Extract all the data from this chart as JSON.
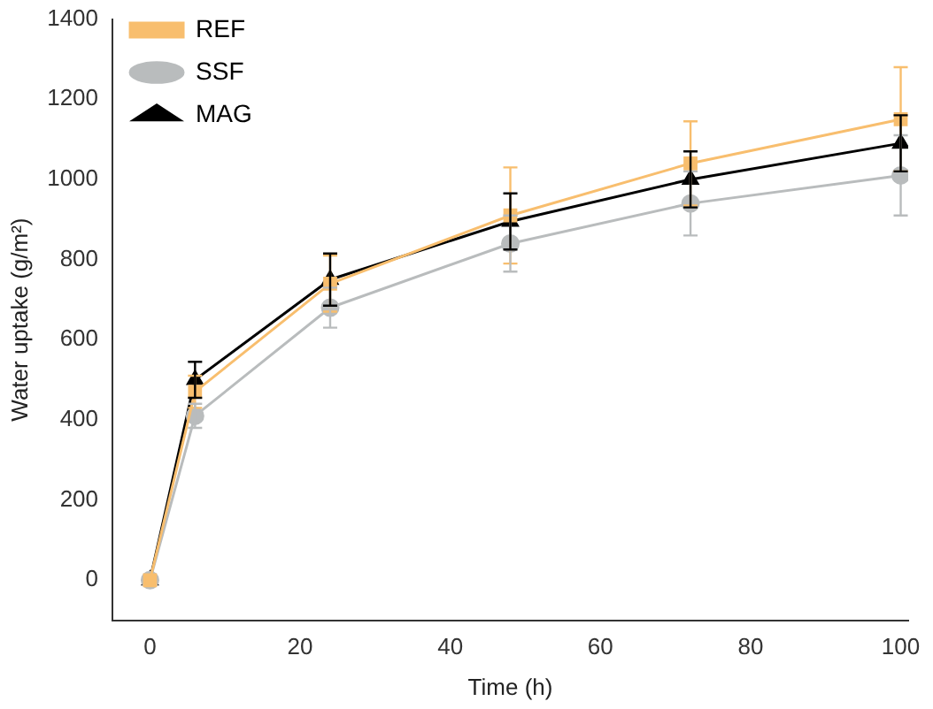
{
  "chart_data": {
    "type": "line",
    "xlabel": "Time (h)",
    "ylabel": "Water uptake (g/m²)",
    "x": [
      0,
      6,
      24,
      48,
      72,
      100
    ],
    "xlim": [
      -5,
      101
    ],
    "xticks": [
      0,
      20,
      40,
      60,
      80,
      100
    ],
    "ylim": [
      -100,
      1400
    ],
    "yticks": [
      0,
      200,
      400,
      600,
      800,
      1000,
      1200,
      1400
    ],
    "grid": false,
    "legend": "top left",
    "line_style": "solid",
    "series": [
      {
        "name": "REF",
        "color": "#f8be6e",
        "marker": "square",
        "values": [
          0,
          470,
          740,
          910,
          1040,
          1150
        ],
        "errors": [
          null,
          40,
          70,
          120,
          105,
          130
        ]
      },
      {
        "name": "SSF",
        "color": "#b9bcbd",
        "marker": "circle",
        "values": [
          0,
          410,
          680,
          840,
          940,
          1010
        ],
        "errors": [
          null,
          30,
          50,
          70,
          80,
          100
        ]
      },
      {
        "name": "MAG",
        "color": "#000000",
        "marker": "triangle",
        "values": [
          0,
          500,
          750,
          895,
          1000,
          1090
        ],
        "errors": [
          null,
          45,
          65,
          70,
          70,
          70
        ]
      }
    ]
  }
}
